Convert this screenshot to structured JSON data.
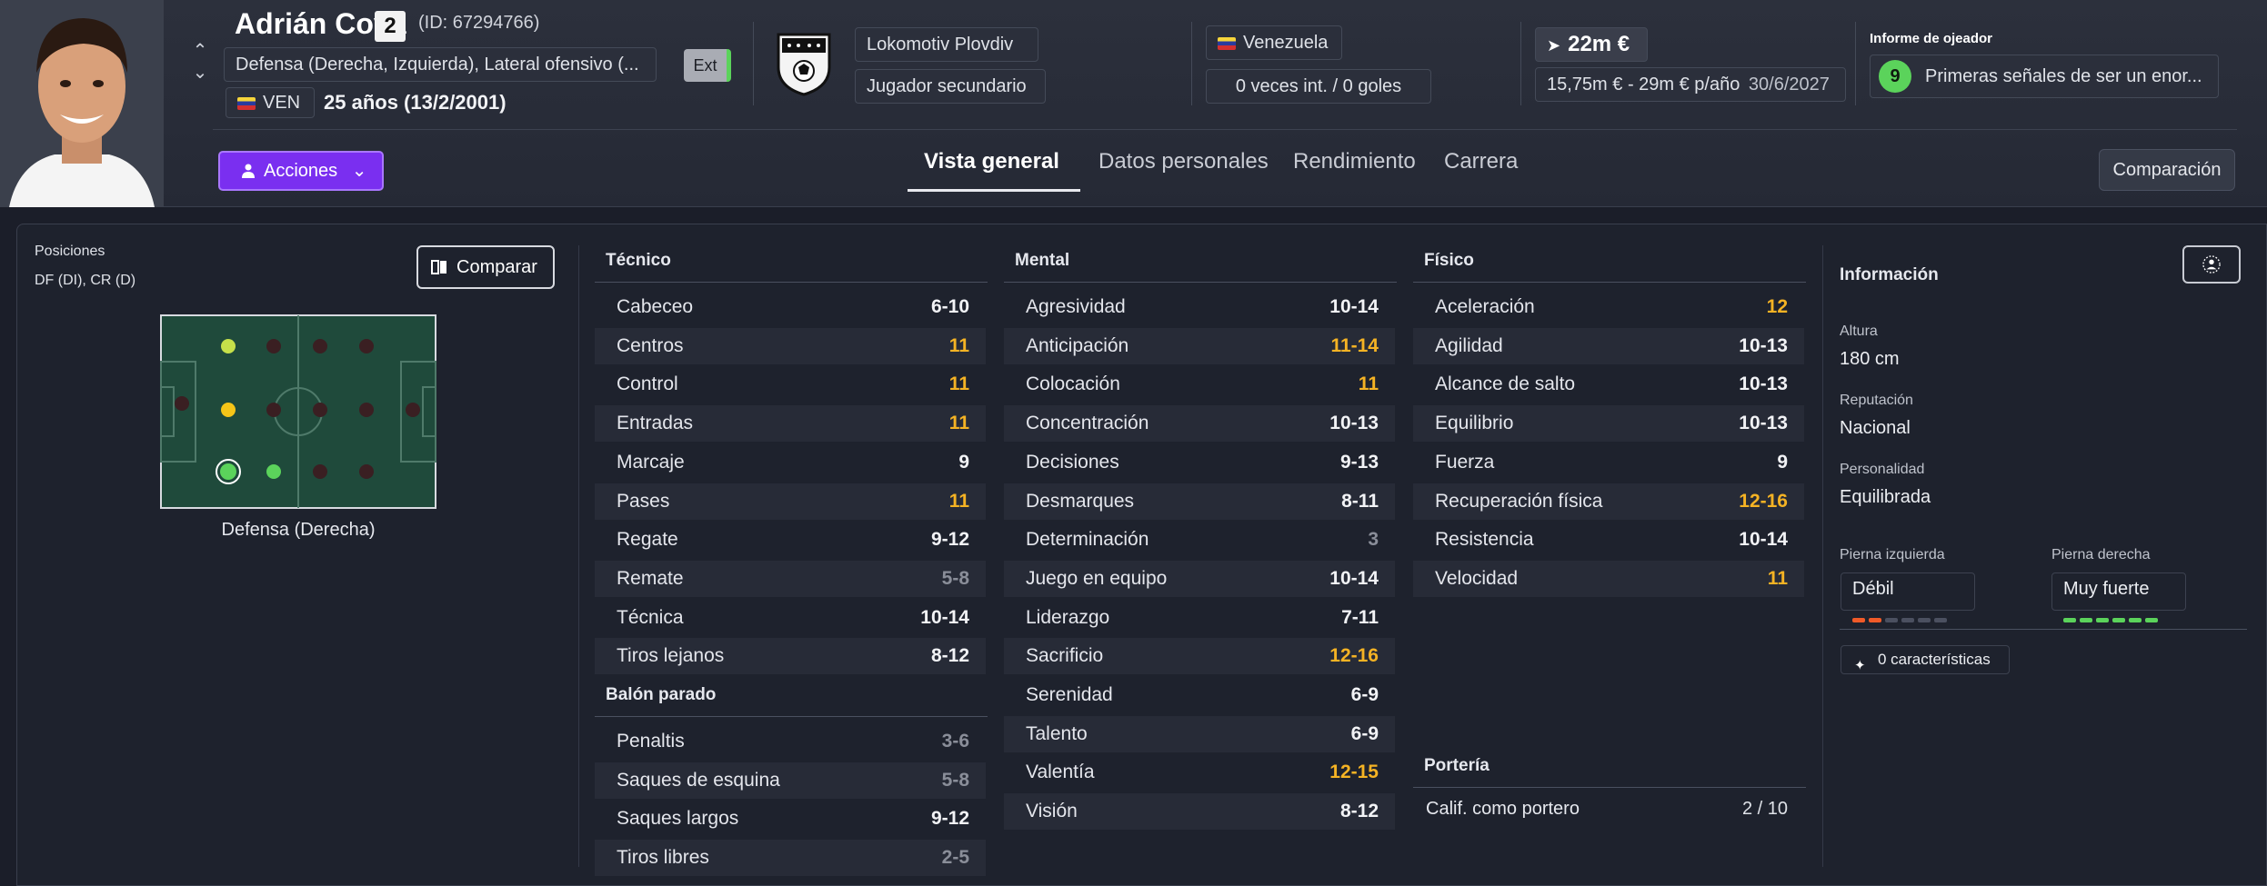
{
  "player": {
    "name": "Adrián Cova",
    "number": "2",
    "id_text": "(ID: 67294766)",
    "positions_text": "Defensa (Derecha, Izquierda), Lateral ofensivo (...",
    "ext_label": "Ext",
    "nation_code": "VEN",
    "age_text": "25 años (13/2/2001)"
  },
  "club": {
    "name": "Lokomotiv Plovdiv",
    "role": "Jugador secundario"
  },
  "international": {
    "country": "Venezuela",
    "caps_text": "0 veces int. / 0 goles"
  },
  "value": {
    "amount": "22m €",
    "wage_range": "15,75m € - 29m € p/año",
    "contract_end": "30/6/2027"
  },
  "scout": {
    "title": "Informe de ojeador",
    "score": "9",
    "summary": "Primeras señales de ser un enor..."
  },
  "actions_label": "Acciones",
  "tabs": [
    {
      "label": "Vista general",
      "active": true
    },
    {
      "label": "Datos personales",
      "active": false
    },
    {
      "label": "Rendimiento",
      "active": false
    },
    {
      "label": "Carrera",
      "active": false
    }
  ],
  "comparison_label": "Comparación",
  "positions_panel": {
    "label": "Posiciones",
    "codes": "DF (DI), CR (D)",
    "compare_label": "Comparar",
    "position_name": "Defensa (Derecha)"
  },
  "technical": {
    "title": "Técnico",
    "attrs": [
      {
        "name": "Cabeceo",
        "value": "6-10",
        "tier": "normal"
      },
      {
        "name": "Centros",
        "value": "11",
        "tier": "high"
      },
      {
        "name": "Control",
        "value": "11",
        "tier": "high"
      },
      {
        "name": "Entradas",
        "value": "11",
        "tier": "high"
      },
      {
        "name": "Marcaje",
        "value": "9",
        "tier": "normal"
      },
      {
        "name": "Pases",
        "value": "11",
        "tier": "high"
      },
      {
        "name": "Regate",
        "value": "9-12",
        "tier": "normal"
      },
      {
        "name": "Remate",
        "value": "5-8",
        "tier": "low"
      },
      {
        "name": "Técnica",
        "value": "10-14",
        "tier": "normal"
      },
      {
        "name": "Tiros lejanos",
        "value": "8-12",
        "tier": "normal"
      }
    ]
  },
  "set_pieces": {
    "title": "Balón parado",
    "attrs": [
      {
        "name": "Penaltis",
        "value": "3-6",
        "tier": "low"
      },
      {
        "name": "Saques de esquina",
        "value": "5-8",
        "tier": "low"
      },
      {
        "name": "Saques largos",
        "value": "9-12",
        "tier": "normal"
      },
      {
        "name": "Tiros libres",
        "value": "2-5",
        "tier": "low"
      }
    ]
  },
  "mental": {
    "title": "Mental",
    "attrs": [
      {
        "name": "Agresividad",
        "value": "10-14",
        "tier": "normal"
      },
      {
        "name": "Anticipación",
        "value": "11-14",
        "tier": "high"
      },
      {
        "name": "Colocación",
        "value": "11",
        "tier": "high"
      },
      {
        "name": "Concentración",
        "value": "10-13",
        "tier": "normal"
      },
      {
        "name": "Decisiones",
        "value": "9-13",
        "tier": "normal"
      },
      {
        "name": "Desmarques",
        "value": "8-11",
        "tier": "normal"
      },
      {
        "name": "Determinación",
        "value": "3",
        "tier": "low"
      },
      {
        "name": "Juego en equipo",
        "value": "10-14",
        "tier": "normal"
      },
      {
        "name": "Liderazgo",
        "value": "7-11",
        "tier": "normal"
      },
      {
        "name": "Sacrificio",
        "value": "12-16",
        "tier": "high"
      },
      {
        "name": "Serenidad",
        "value": "6-9",
        "tier": "normal"
      },
      {
        "name": "Talento",
        "value": "6-9",
        "tier": "normal"
      },
      {
        "name": "Valentía",
        "value": "12-15",
        "tier": "high"
      },
      {
        "name": "Visión",
        "value": "8-12",
        "tier": "normal"
      }
    ]
  },
  "physical": {
    "title": "Físico",
    "attrs": [
      {
        "name": "Aceleración",
        "value": "12",
        "tier": "high"
      },
      {
        "name": "Agilidad",
        "value": "10-13",
        "tier": "normal"
      },
      {
        "name": "Alcance de salto",
        "value": "10-13",
        "tier": "normal"
      },
      {
        "name": "Equilibrio",
        "value": "10-13",
        "tier": "normal"
      },
      {
        "name": "Fuerza",
        "value": "9",
        "tier": "normal"
      },
      {
        "name": "Recuperación física",
        "value": "12-16",
        "tier": "high"
      },
      {
        "name": "Resistencia",
        "value": "10-14",
        "tier": "normal"
      },
      {
        "name": "Velocidad",
        "value": "11",
        "tier": "high"
      }
    ]
  },
  "goalkeeping": {
    "title": "Portería",
    "label": "Calif. como portero",
    "value": "2 / 10"
  },
  "info": {
    "title": "Información",
    "height_label": "Altura",
    "height": "180 cm",
    "reputation_label": "Reputación",
    "reputation": "Nacional",
    "personality_label": "Personalidad",
    "personality": "Equilibrada",
    "left_foot_label": "Pierna izquierda",
    "left_foot": "Débil",
    "left_foot_level": 2,
    "right_foot_label": "Pierna derecha",
    "right_foot": "Muy fuerte",
    "right_foot_level": 6,
    "traits": "0 características"
  },
  "colors": {
    "accent_purple": "#7a2ff0",
    "high_value": "#f5b324",
    "low_value": "#8a8e99",
    "green": "#5bd35b",
    "orange": "#f05a28"
  }
}
